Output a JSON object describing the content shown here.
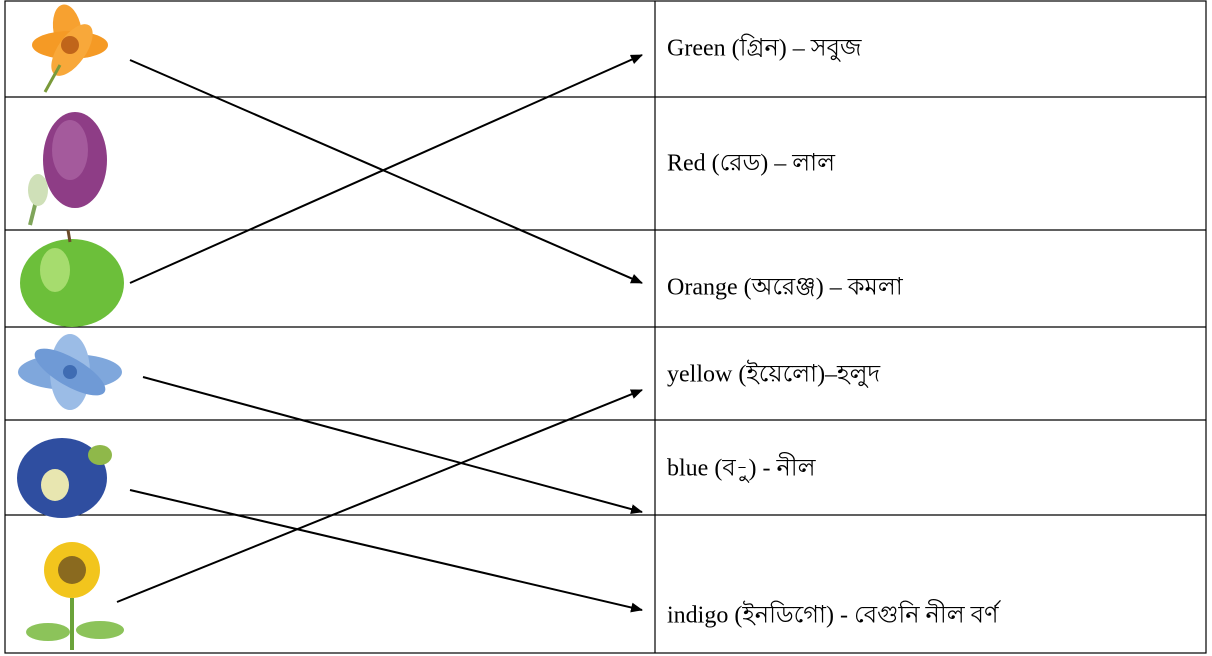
{
  "rows": [
    {
      "label": "Green (গ্রিন) – সবুজ"
    },
    {
      "label": "Red (রেড) – লাল"
    },
    {
      "label": "Orange (অরেঞ্জ) – কমলা"
    },
    {
      "label": "yellow (ইয়েলো)–হলুদ"
    },
    {
      "label": "blue (ব-ু) - নীল"
    },
    {
      "label": "indigo (ইনডিগো) - বেগুনি নীল বর্ণ"
    }
  ]
}
